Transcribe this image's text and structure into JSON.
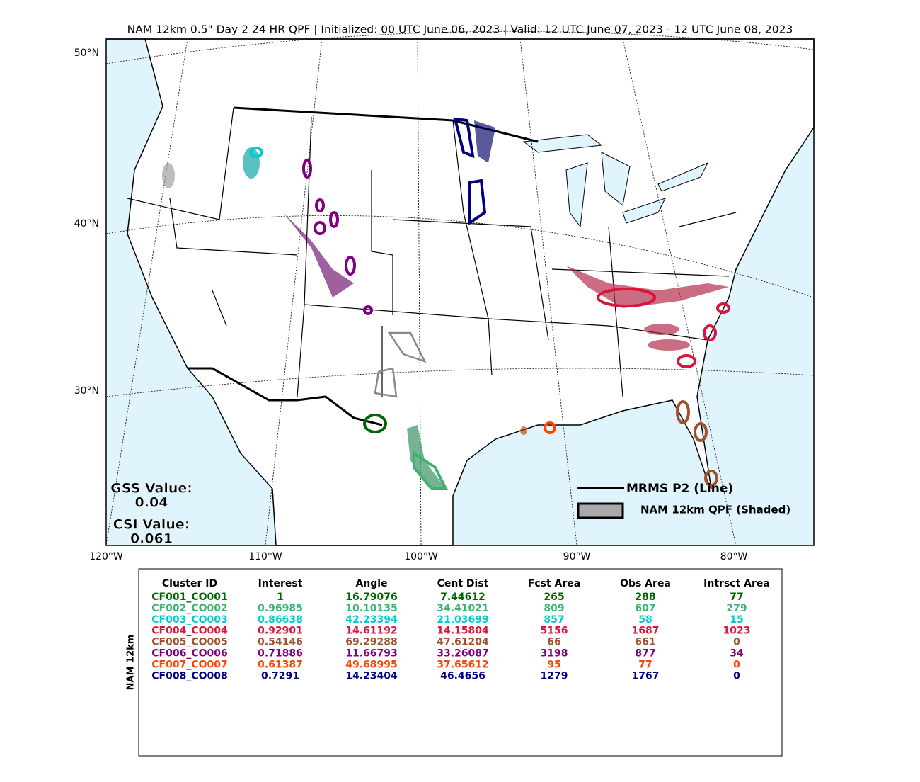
{
  "title": "NAM 12km 0.5\" Day 2 24 HR QPF | Initialized: 00 UTC June 06, 2023 | Valid: 12 UTC June 07, 2023 - 12 UTC June 08, 2023",
  "map": {
    "lat_labels": [
      "50°N",
      "40°N",
      "30°N"
    ],
    "lon_labels": [
      "120°W",
      "110°W",
      "100°W",
      "90°W",
      "80°W"
    ],
    "gss_label": "GSS Value:",
    "gss_value": "0.04",
    "csi_label": "CSI Value:",
    "csi_value": "0.061",
    "legend": [
      "MRMS P2 (Line)",
      "NAM 12km QPF (Shaded)"
    ]
  },
  "table": {
    "side_label": "NAM 12km",
    "columns": [
      "Cluster ID",
      "Interest",
      "Angle",
      "Cent Dist",
      "Fcst Area",
      "Obs Area",
      "Intrsct Area"
    ],
    "row_colors": [
      "#006400",
      "#3cb371",
      "#00cdcd",
      "#dc143c",
      "#a0522d",
      "#800080",
      "#ff4500",
      "#000080"
    ],
    "rows": [
      [
        "CF001_CO001",
        "1",
        "16.79076",
        "7.44612",
        "265",
        "288",
        "77"
      ],
      [
        "CF002_CO002",
        "0.96985",
        "10.10135",
        "34.41021",
        "809",
        "607",
        "279"
      ],
      [
        "CF003_CO003",
        "0.86638",
        "42.23394",
        "21.03699",
        "857",
        "58",
        "15"
      ],
      [
        "CF004_CO004",
        "0.92901",
        "14.61192",
        "14.15804",
        "5156",
        "1687",
        "1023"
      ],
      [
        "CF005_CO005",
        "0.54146",
        "69.29288",
        "47.61204",
        "66",
        "661",
        "0"
      ],
      [
        "CF006_CO006",
        "0.71886",
        "11.66793",
        "33.26087",
        "3198",
        "877",
        "34"
      ],
      [
        "CF007_CO007",
        "0.61387",
        "49.68995",
        "37.65612",
        "95",
        "77",
        "0"
      ],
      [
        "CF008_CO008",
        "0.7291",
        "14.23404",
        "46.4656",
        "1279",
        "1767",
        "0"
      ]
    ]
  }
}
